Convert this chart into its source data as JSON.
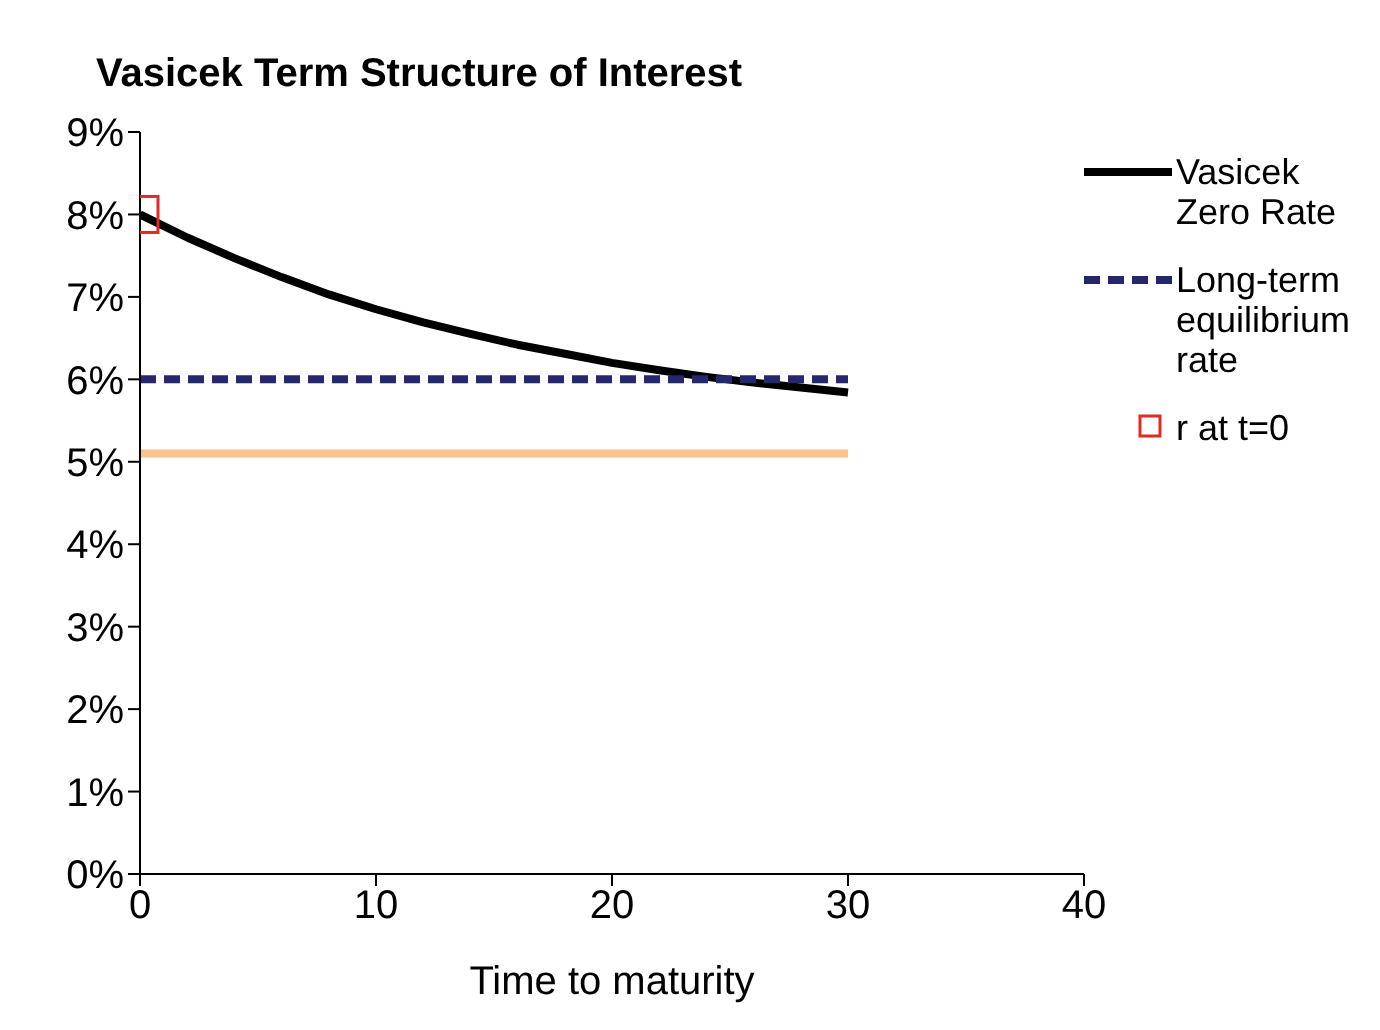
{
  "chart_data": {
    "type": "line",
    "title": "Vasicek Term Structure of Interest",
    "xlabel": "Time to maturity",
    "xlim": [
      0,
      40
    ],
    "xticks": [
      0,
      10,
      20,
      30,
      40
    ],
    "ylim": [
      0,
      9
    ],
    "yticks": [
      {
        "value": 0,
        "label": "0%"
      },
      {
        "value": 1,
        "label": "1%"
      },
      {
        "value": 2,
        "label": "2%"
      },
      {
        "value": 3,
        "label": "3%"
      },
      {
        "value": 4,
        "label": "4%"
      },
      {
        "value": 5,
        "label": "5%"
      },
      {
        "value": 6,
        "label": "6%"
      },
      {
        "value": 7,
        "label": "7%"
      },
      {
        "value": 8,
        "label": "8%"
      },
      {
        "value": 9,
        "label": "9%"
      }
    ],
    "grid": false,
    "legend": "right",
    "series": [
      {
        "name": "Vasicek Zero Rate",
        "color": "#000000",
        "line_style": "solid",
        "marker": "none",
        "x": [
          0,
          2,
          4,
          6,
          8,
          10,
          12,
          14,
          16,
          18,
          20,
          22,
          24,
          26,
          28,
          30
        ],
        "values": [
          8.0,
          7.72,
          7.47,
          7.24,
          7.03,
          6.85,
          6.69,
          6.55,
          6.42,
          6.31,
          6.2,
          6.11,
          6.03,
          5.96,
          5.9,
          5.84
        ]
      },
      {
        "name": "Long-term equilibrium rate",
        "color": "#27276e",
        "line_style": "dashed",
        "marker": "none",
        "x": [
          0,
          30
        ],
        "values": [
          6.0,
          6.0
        ]
      },
      {
        "color": "#f9c28e",
        "line_style": "solid",
        "marker": "none",
        "x": [
          0,
          30
        ],
        "values": [
          5.1,
          5.1
        ]
      },
      {
        "name": "r at t=0",
        "type": "scatter",
        "color": "#e02a22",
        "marker": "square",
        "x": [
          0
        ],
        "values": [
          8.0
        ]
      }
    ]
  }
}
